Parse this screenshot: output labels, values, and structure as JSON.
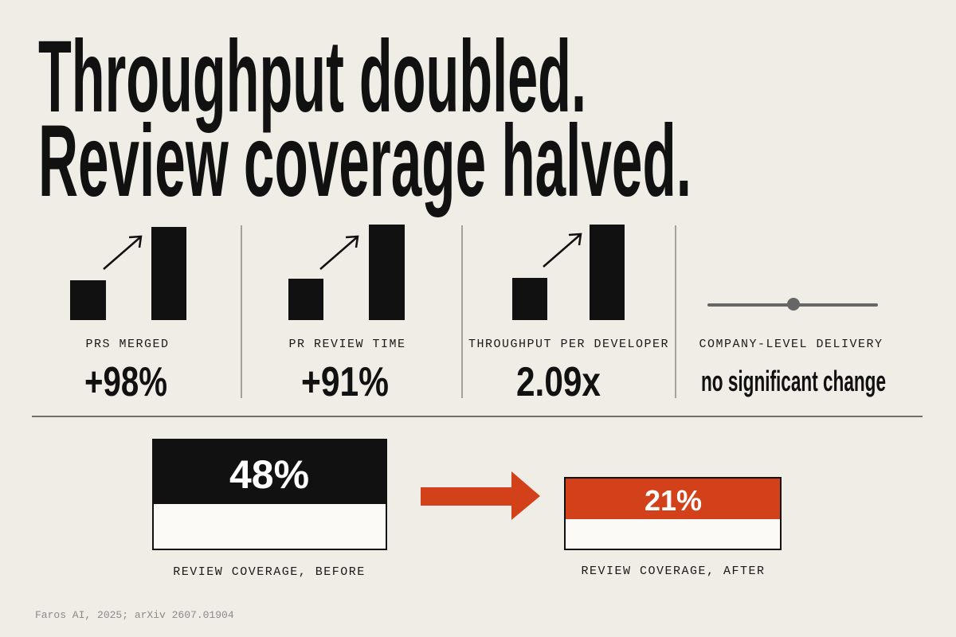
{
  "headline": {
    "lines": [
      "Throughput doubled.",
      "Review coverage halved."
    ]
  },
  "stats": [
    {
      "label": "PRS MERGED",
      "value": "+98%"
    },
    {
      "label": "PR REVIEW TIME",
      "value": "+91%"
    },
    {
      "label": "THROUGHPUT PER DEVELOPER",
      "value": "2.09x"
    },
    {
      "label": "COMPANY-LEVEL DELIVERY",
      "value": "no significant change"
    }
  ],
  "coverage": {
    "before": {
      "value": "48%",
      "label": "REVIEW COVERAGE, BEFORE"
    },
    "after": {
      "value": "21%",
      "label": "REVIEW COVERAGE, AFTER"
    }
  },
  "source": "Faros AI, 2025; arXiv 2607.01904"
}
